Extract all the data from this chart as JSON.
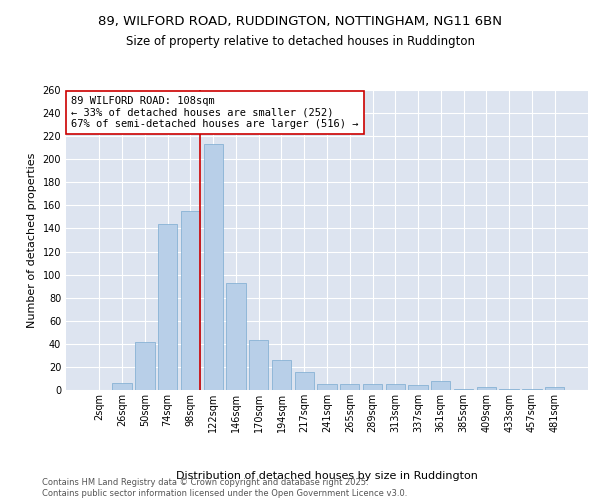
{
  "title_line1": "89, WILFORD ROAD, RUDDINGTON, NOTTINGHAM, NG11 6BN",
  "title_line2": "Size of property relative to detached houses in Ruddington",
  "xlabel": "Distribution of detached houses by size in Ruddington",
  "ylabel": "Number of detached properties",
  "categories": [
    "2sqm",
    "26sqm",
    "50sqm",
    "74sqm",
    "98sqm",
    "122sqm",
    "146sqm",
    "170sqm",
    "194sqm",
    "217sqm",
    "241sqm",
    "265sqm",
    "289sqm",
    "313sqm",
    "337sqm",
    "361sqm",
    "385sqm",
    "409sqm",
    "433sqm",
    "457sqm",
    "481sqm"
  ],
  "values": [
    0,
    6,
    42,
    144,
    155,
    213,
    93,
    43,
    26,
    16,
    5,
    5,
    5,
    5,
    4,
    8,
    1,
    3,
    1,
    1,
    3
  ],
  "bar_color": "#b8cfe8",
  "bar_edge_color": "#7aaad0",
  "background_color": "#dde4f0",
  "grid_color": "#ffffff",
  "vline_color": "#cc0000",
  "annotation_line1": "89 WILFORD ROAD: 108sqm",
  "annotation_line2": "← 33% of detached houses are smaller (252)",
  "annotation_line3": "67% of semi-detached houses are larger (516) →",
  "annotation_box_color": "#ffffff",
  "annotation_box_edge_color": "#cc0000",
  "ylim": [
    0,
    260
  ],
  "yticks": [
    0,
    20,
    40,
    60,
    80,
    100,
    120,
    140,
    160,
    180,
    200,
    220,
    240,
    260
  ],
  "footer_text": "Contains HM Land Registry data © Crown copyright and database right 2025.\nContains public sector information licensed under the Open Government Licence v3.0.",
  "title_fontsize": 9.5,
  "subtitle_fontsize": 8.5,
  "label_fontsize": 8,
  "tick_fontsize": 7,
  "annotation_fontsize": 7.5,
  "footer_fontsize": 6
}
